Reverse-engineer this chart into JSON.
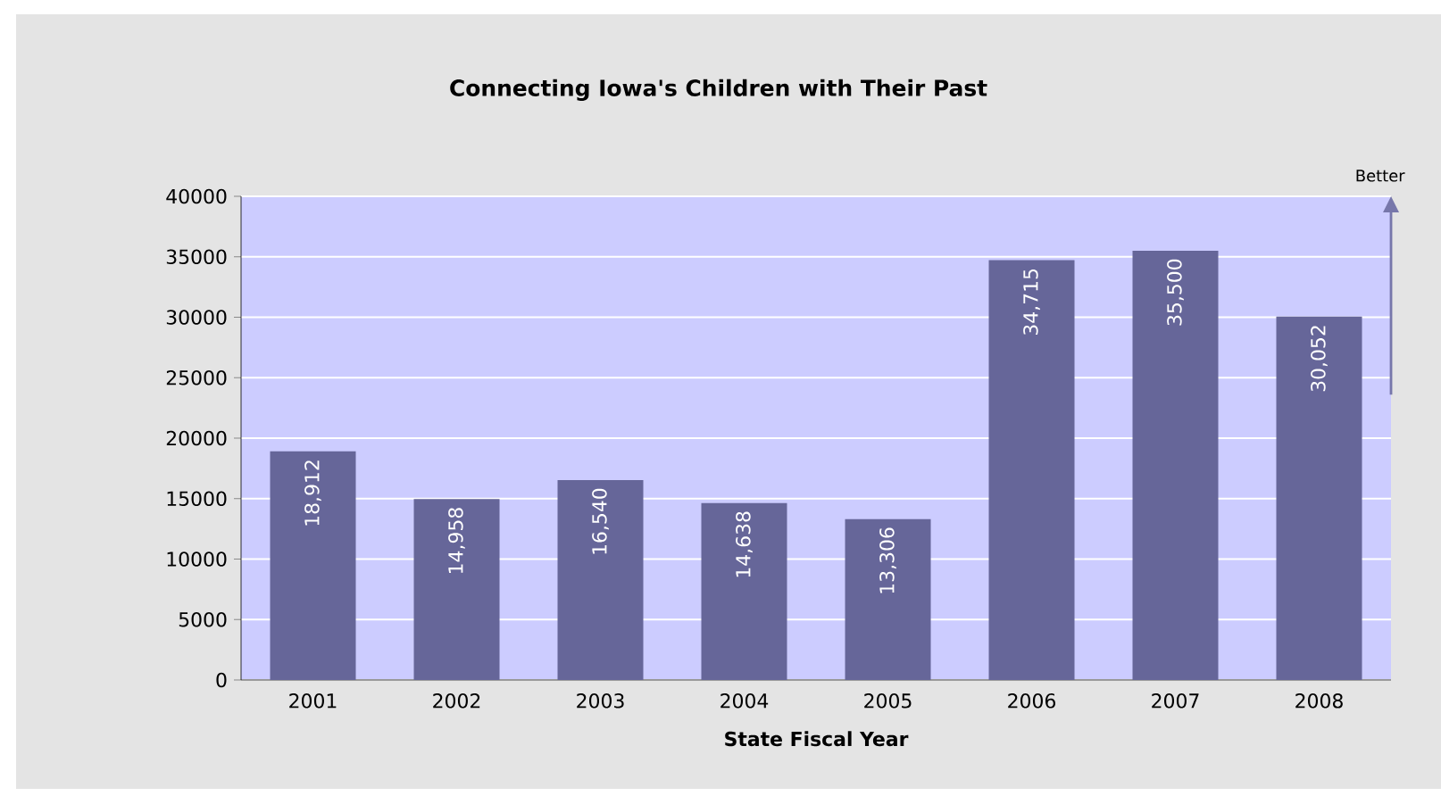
{
  "chart_data": {
    "type": "bar",
    "title": "Connecting Iowa's Children with Their Past",
    "xlabel": "State Fiscal Year",
    "categories": [
      "2001",
      "2002",
      "2003",
      "2004",
      "2005",
      "2006",
      "2007",
      "2008"
    ],
    "values": [
      18912,
      14958,
      16540,
      14638,
      13306,
      34715,
      35500,
      30052
    ],
    "value_labels": [
      "18,912",
      "14,958",
      "16,540",
      "14,638",
      "13,306",
      "34,715",
      "35,500",
      "30,052"
    ],
    "color": "#666699",
    "ylim": [
      0,
      40000
    ],
    "yticks": [
      0,
      5000,
      10000,
      15000,
      20000,
      25000,
      30000,
      35000,
      40000
    ],
    "grid": "y",
    "annotations": [
      "Better"
    ]
  }
}
